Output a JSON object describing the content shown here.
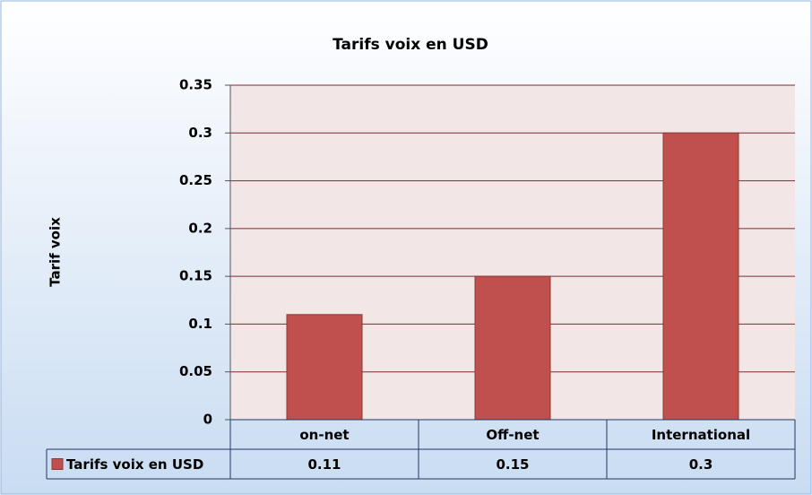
{
  "chart_data": {
    "type": "bar",
    "title": "Tarifs voix en USD",
    "y_label": "Tarif voix",
    "categories": [
      "on-net",
      "Off-net",
      "International"
    ],
    "series": [
      {
        "name": "Tarifs voix en USD",
        "color": "#c0504d",
        "values": [
          0.11,
          0.15,
          0.3
        ]
      }
    ],
    "ylim": [
      0,
      0.35
    ],
    "yticks": [
      0,
      0.05,
      0.1,
      0.15,
      0.2,
      0.25,
      0.3,
      0.35
    ],
    "grid": true,
    "data_table": true
  }
}
